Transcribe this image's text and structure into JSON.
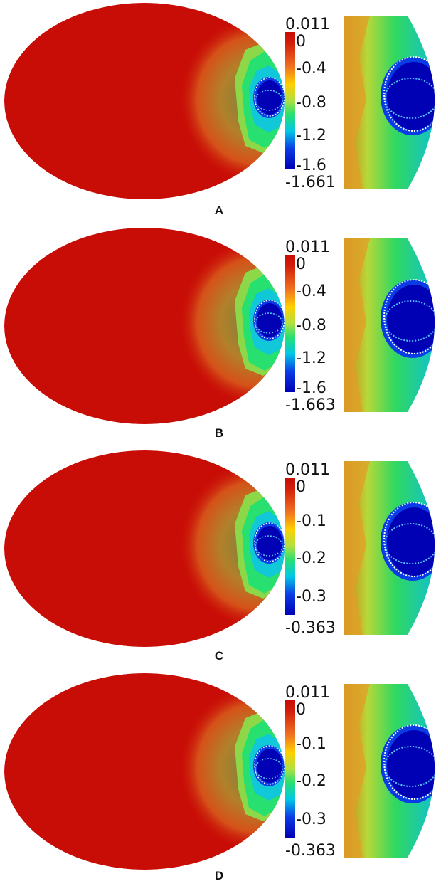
{
  "panels": [
    {
      "letter": "A",
      "colorbar": {
        "max_label": "0.011",
        "min_label": "-1.661",
        "ticks": [
          "0",
          "-0.4",
          "-0.8",
          "-1.2",
          "-1.6"
        ]
      }
    },
    {
      "letter": "B",
      "colorbar": {
        "max_label": "0.011",
        "min_label": "-1.663",
        "ticks": [
          "0",
          "-0.4",
          "-0.8",
          "-1.2",
          "-1.6"
        ]
      }
    },
    {
      "letter": "C",
      "colorbar": {
        "max_label": "0.011",
        "min_label": "-0.363",
        "ticks": [
          "0",
          "-0.1",
          "-0.2",
          "-0.3"
        ]
      }
    },
    {
      "letter": "D",
      "colorbar": {
        "max_label": "0.011",
        "min_label": "-0.363",
        "ticks": [
          "0",
          "-0.1",
          "-0.2",
          "-0.3"
        ]
      }
    }
  ],
  "colors": {
    "background_field": "#c80c06",
    "colormap": [
      "#0000b4",
      "#0a3ce6",
      "#00c8e6",
      "#28e070",
      "#b0e040",
      "#ffd000",
      "#f07020",
      "#d21e0a",
      "#c80c06"
    ],
    "contour_inner": "#4ec8ff",
    "contour_outer": "#ffffff"
  }
}
